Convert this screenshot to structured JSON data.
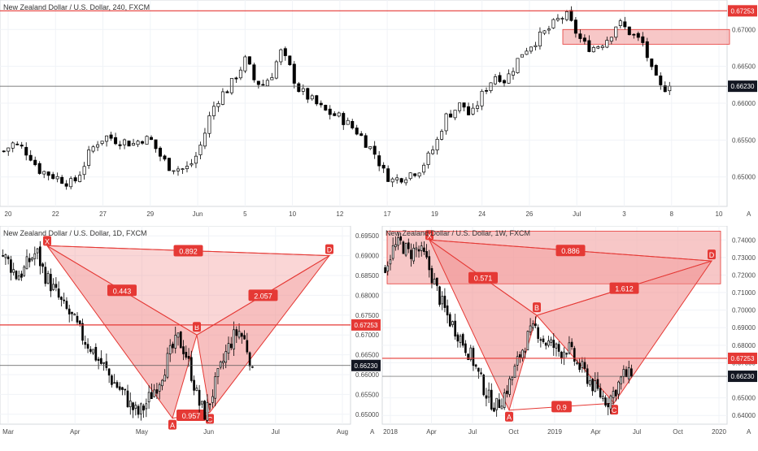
{
  "colors": {
    "up": "#000000",
    "down": "#000000",
    "red": "#e53935",
    "zone_fill": "#f4b4b4",
    "pattern_fill": "#f08a8a",
    "grid": "#f0f3f7",
    "axis_text": "#4a4a4a",
    "last_price_bg": "#131722"
  },
  "panels": [
    {
      "id": "top",
      "title": "New Zealand Dollar / U.S. Dollar, 240, FXCM",
      "x_ticks": [
        "20",
        "22",
        "27",
        "29",
        "Jun",
        "5",
        "10",
        "12",
        "17",
        "19",
        "24",
        "26",
        "Jul",
        "3",
        "8",
        "10"
      ],
      "y_ticks": [
        "0.67000",
        "0.66500",
        "0.66000",
        "0.65500",
        "0.65000"
      ],
      "resistance_label": "0.67253",
      "last_price_label": "0.66230",
      "corner_label": "A"
    },
    {
      "id": "bottom-left",
      "title": "New Zealand Dollar / U.S. Dollar, 1D, FXCM",
      "x_ticks": [
        "Mar",
        "Apr",
        "May",
        "Jun",
        "Jul",
        "Aug"
      ],
      "y_ticks": [
        "0.69500",
        "0.69000",
        "0.68500",
        "0.68000",
        "0.67500",
        "0.67000",
        "0.66500",
        "0.66000",
        "0.65500",
        "0.65000"
      ],
      "resistance_label": "0.67253",
      "last_price_label": "0.66230",
      "corner_label": "A",
      "points": {
        "x": "X",
        "a": "A",
        "b": "B",
        "c": "C",
        "d": "D"
      },
      "ratios": {
        "xb": "0.443",
        "bd": "2.057",
        "xd": "0.892",
        "ac": "0.957"
      }
    },
    {
      "id": "bottom-right",
      "title": "New Zealand Dollar / U.S. Dollar, 1W, FXCM",
      "x_ticks": [
        "2018",
        "Apr",
        "Jul",
        "Oct",
        "2019",
        "Apr",
        "Jul",
        "Oct",
        "2020"
      ],
      "y_ticks": [
        "0.74000",
        "0.73000",
        "0.72000",
        "0.71000",
        "0.70000",
        "0.69000",
        "0.68000",
        "0.67000",
        "0.65000",
        "0.64000"
      ],
      "resistance_label": "0.67253",
      "last_price_label": "0.66230",
      "corner_label": "A",
      "points": {
        "x": "X",
        "a": "A",
        "b": "B",
        "c": "C",
        "d": "D"
      },
      "ratios": {
        "xb": "0.571",
        "bd": "1.612",
        "xd": "0.886",
        "ac": "0.9"
      }
    }
  ],
  "chart_data": [
    {
      "type": "candlestick",
      "title": "New Zealand Dollar / U.S. Dollar, 240, FXCM",
      "ylim": [
        0.646,
        0.674
      ],
      "close_path": [
        0.6535,
        0.6545,
        0.654,
        0.653,
        0.651,
        0.6505,
        0.65,
        0.6495,
        0.649,
        0.651,
        0.6535,
        0.655,
        0.6555,
        0.655,
        0.6548,
        0.6545,
        0.6552,
        0.655,
        0.653,
        0.6515,
        0.6512,
        0.651,
        0.6522,
        0.655,
        0.659,
        0.661,
        0.662,
        0.664,
        0.666,
        0.663,
        0.6625,
        0.664,
        0.667,
        0.665,
        0.662,
        0.661,
        0.66,
        0.659,
        0.6585,
        0.658,
        0.657,
        0.656,
        0.6545,
        0.653,
        0.6505,
        0.6495,
        0.65,
        0.6505,
        0.651,
        0.6525,
        0.6545,
        0.658,
        0.659,
        0.66,
        0.658,
        0.6605,
        0.6625,
        0.664,
        0.663,
        0.665,
        0.667,
        0.668,
        0.669,
        0.67,
        0.6712,
        0.672,
        0.67,
        0.668,
        0.6675,
        0.668,
        0.669,
        0.671,
        0.67,
        0.669,
        0.668,
        0.664,
        0.662,
        0.6623
      ],
      "resistance": 0.67253,
      "last_price": 0.6623,
      "supply_zone": [
        0.668,
        0.67
      ]
    },
    {
      "type": "candlestick",
      "title": "New Zealand Dollar / U.S. Dollar, 1D, FXCM",
      "ylim": [
        0.6475,
        0.6975
      ],
      "close_path": [
        0.69,
        0.688,
        0.685,
        0.686,
        0.689,
        0.691,
        0.686,
        0.683,
        0.68,
        0.677,
        0.675,
        0.672,
        0.669,
        0.667,
        0.664,
        0.662,
        0.659,
        0.657,
        0.655,
        0.652,
        0.65,
        0.652,
        0.655,
        0.658,
        0.662,
        0.666,
        0.669,
        0.666,
        0.66,
        0.653,
        0.65,
        0.655,
        0.66,
        0.665,
        0.669,
        0.671,
        0.668,
        0.662
      ],
      "resistance": 0.67253,
      "last_price": 0.6623,
      "harmonic_points": {
        "X": 0.6925,
        "A": 0.649,
        "B": 0.67,
        "C": 0.6505,
        "D": 0.69
      }
    },
    {
      "type": "candlestick",
      "title": "New Zealand Dollar / U.S. Dollar, 1W, FXCM",
      "ylim": [
        0.635,
        0.748
      ],
      "close_path": [
        0.725,
        0.735,
        0.738,
        0.732,
        0.735,
        0.73,
        0.718,
        0.705,
        0.695,
        0.688,
        0.68,
        0.672,
        0.66,
        0.65,
        0.645,
        0.652,
        0.662,
        0.675,
        0.685,
        0.69,
        0.682,
        0.68,
        0.676,
        0.679,
        0.67,
        0.665,
        0.658,
        0.652,
        0.648,
        0.655,
        0.663,
        0.6623
      ],
      "resistance": 0.67253,
      "last_price": 0.6623,
      "harmonic_points": {
        "X": 0.74,
        "A": 0.643,
        "B": 0.697,
        "C": 0.647,
        "D": 0.728
      },
      "supply_zone": [
        0.715,
        0.745
      ]
    }
  ]
}
